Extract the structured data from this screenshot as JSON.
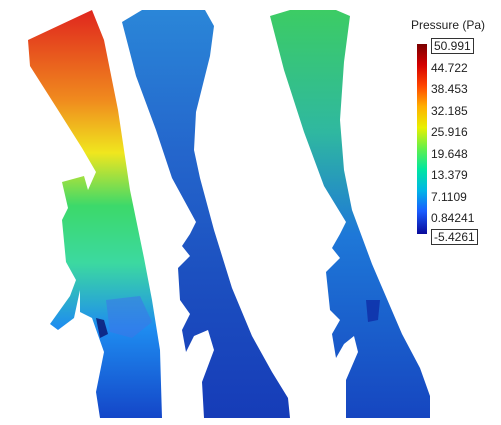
{
  "legend": {
    "title": "Pressure (Pa)",
    "max": "50.991",
    "min": "-5.4261",
    "ticks": [
      "44.722",
      "38.453",
      "32.185",
      "25.916",
      "19.648",
      "13.379",
      "7.1109",
      "0.84241"
    ],
    "colormap": [
      "#7a0000",
      "#d40000",
      "#ff4500",
      "#ffb000",
      "#e8f000",
      "#63f04a",
      "#00e6a0",
      "#00b6e6",
      "#1a5cff",
      "#0a0a9a"
    ]
  },
  "panels": [
    {
      "name": "left-geometry",
      "colors": [
        "#e0261e",
        "#f08a1e",
        "#f0e61e",
        "#3cd96a",
        "#1e8cf0",
        "#1446c8"
      ]
    },
    {
      "name": "middle-geometry",
      "colors": [
        "#2a78d8",
        "#2466cc",
        "#1c50c0",
        "#163cb8"
      ]
    },
    {
      "name": "right-geometry",
      "colors": [
        "#3ccc64",
        "#1ea8c8",
        "#1e78d8",
        "#1646c0"
      ]
    }
  ]
}
